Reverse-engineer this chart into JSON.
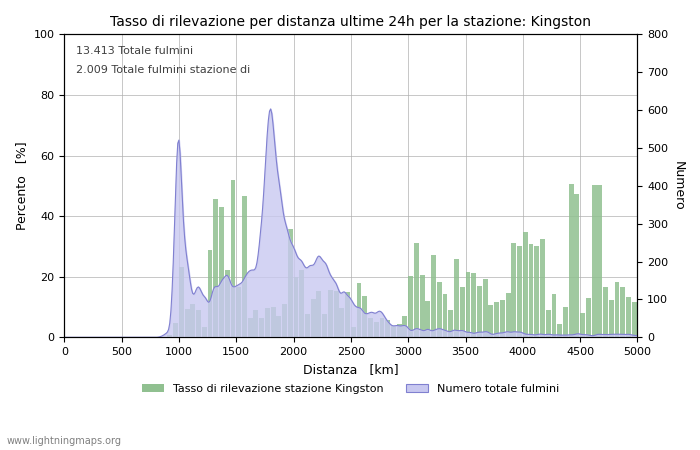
{
  "title": "Tasso di rilevazione per distanza ultime 24h per la stazione: Kingston",
  "xlabel": "Distanza   [km]",
  "ylabel_left": "Percento   [%]",
  "ylabel_right": "Numero",
  "annotation_line1": "13.413 Totale fulmini",
  "annotation_line2": "2.009 Totale fulmini stazione di",
  "legend_green": "Tasso di rilevazione stazione Kingston",
  "legend_blue": "Numero totale fulmini",
  "footer": "www.lightningmaps.org",
  "xlim": [
    0,
    5000
  ],
  "ylim_left": [
    0,
    100
  ],
  "ylim_right": [
    0,
    800
  ],
  "xticks": [
    0,
    500,
    1000,
    1500,
    2000,
    2500,
    3000,
    3500,
    4000,
    4500,
    5000
  ],
  "yticks_left": [
    0,
    20,
    40,
    60,
    80,
    100
  ],
  "yticks_right": [
    0,
    100,
    200,
    300,
    400,
    500,
    600,
    700,
    800
  ],
  "bar_color": "#90c090",
  "line_color": "#8080d0",
  "fill_color": "#c8c8f0",
  "bg_color": "#ffffff",
  "grid_color": "#b0b0b0"
}
